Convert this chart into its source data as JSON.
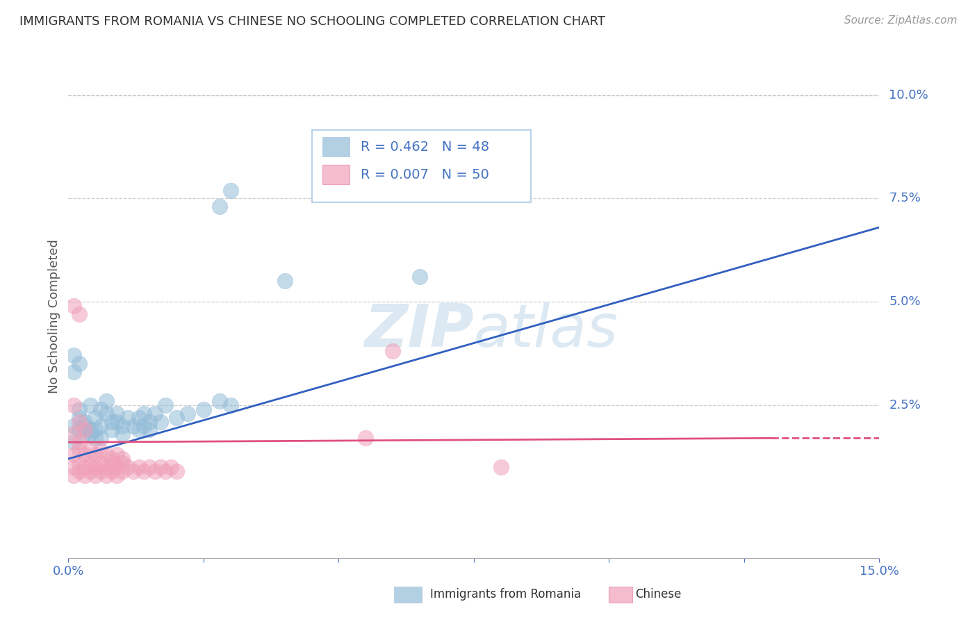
{
  "title": "IMMIGRANTS FROM ROMANIA VS CHINESE NO SCHOOLING COMPLETED CORRELATION CHART",
  "source": "Source: ZipAtlas.com",
  "ylabel": "No Schooling Completed",
  "xlim": [
    0,
    0.15
  ],
  "ylim": [
    -0.012,
    0.105
  ],
  "legend1_r": "0.462",
  "legend1_n": "48",
  "legend2_r": "0.007",
  "legend2_n": "50",
  "background_color": "#ffffff",
  "grid_color": "#c8c8c8",
  "blue_color": "#93bcd8",
  "pink_color": "#f0a0b8",
  "blue_line_color": "#3060c0",
  "pink_line_color": "#e05080",
  "watermark_color": "#dce8f2",
  "romania_points": [
    [
      0.001,
      0.02
    ],
    [
      0.002,
      0.019
    ],
    [
      0.003,
      0.021
    ],
    [
      0.004,
      0.018
    ],
    [
      0.005,
      0.022
    ],
    [
      0.006,
      0.02
    ],
    [
      0.007,
      0.023
    ],
    [
      0.008,
      0.019
    ],
    [
      0.009,
      0.021
    ],
    [
      0.01,
      0.018
    ],
    [
      0.011,
      0.022
    ],
    [
      0.012,
      0.02
    ],
    [
      0.013,
      0.019
    ],
    [
      0.014,
      0.023
    ],
    [
      0.015,
      0.021
    ],
    [
      0.002,
      0.024
    ],
    [
      0.003,
      0.018
    ],
    [
      0.004,
      0.025
    ],
    [
      0.005,
      0.019
    ],
    [
      0.006,
      0.017
    ],
    [
      0.007,
      0.026
    ],
    [
      0.008,
      0.021
    ],
    [
      0.009,
      0.023
    ],
    [
      0.01,
      0.02
    ],
    [
      0.001,
      0.016
    ],
    [
      0.002,
      0.022
    ],
    [
      0.003,
      0.02
    ],
    [
      0.004,
      0.019
    ],
    [
      0.005,
      0.017
    ],
    [
      0.006,
      0.024
    ],
    [
      0.013,
      0.022
    ],
    [
      0.014,
      0.02
    ],
    [
      0.015,
      0.019
    ],
    [
      0.016,
      0.023
    ],
    [
      0.017,
      0.021
    ],
    [
      0.018,
      0.025
    ],
    [
      0.02,
      0.022
    ],
    [
      0.022,
      0.023
    ],
    [
      0.025,
      0.024
    ],
    [
      0.028,
      0.026
    ],
    [
      0.03,
      0.025
    ],
    [
      0.001,
      0.037
    ],
    [
      0.001,
      0.033
    ],
    [
      0.002,
      0.035
    ],
    [
      0.04,
      0.055
    ],
    [
      0.065,
      0.056
    ],
    [
      0.028,
      0.073
    ],
    [
      0.03,
      0.077
    ]
  ],
  "chinese_points": [
    [
      0.001,
      0.01
    ],
    [
      0.001,
      0.008
    ],
    [
      0.002,
      0.009
    ],
    [
      0.002,
      0.011
    ],
    [
      0.003,
      0.01
    ],
    [
      0.003,
      0.008
    ],
    [
      0.004,
      0.009
    ],
    [
      0.004,
      0.011
    ],
    [
      0.005,
      0.01
    ],
    [
      0.005,
      0.008
    ],
    [
      0.006,
      0.009
    ],
    [
      0.006,
      0.011
    ],
    [
      0.007,
      0.01
    ],
    [
      0.007,
      0.008
    ],
    [
      0.008,
      0.009
    ],
    [
      0.008,
      0.011
    ],
    [
      0.009,
      0.01
    ],
    [
      0.009,
      0.008
    ],
    [
      0.01,
      0.009
    ],
    [
      0.01,
      0.011
    ],
    [
      0.011,
      0.01
    ],
    [
      0.012,
      0.009
    ],
    [
      0.013,
      0.01
    ],
    [
      0.014,
      0.009
    ],
    [
      0.015,
      0.01
    ],
    [
      0.016,
      0.009
    ],
    [
      0.017,
      0.01
    ],
    [
      0.018,
      0.009
    ],
    [
      0.019,
      0.01
    ],
    [
      0.02,
      0.009
    ],
    [
      0.001,
      0.013
    ],
    [
      0.002,
      0.014
    ],
    [
      0.003,
      0.013
    ],
    [
      0.004,
      0.014
    ],
    [
      0.005,
      0.013
    ],
    [
      0.006,
      0.014
    ],
    [
      0.007,
      0.013
    ],
    [
      0.008,
      0.012
    ],
    [
      0.009,
      0.013
    ],
    [
      0.01,
      0.012
    ],
    [
      0.001,
      0.025
    ],
    [
      0.002,
      0.021
    ],
    [
      0.003,
      0.019
    ],
    [
      0.001,
      0.018
    ],
    [
      0.002,
      0.016
    ],
    [
      0.001,
      0.049
    ],
    [
      0.002,
      0.047
    ],
    [
      0.06,
      0.038
    ],
    [
      0.055,
      0.017
    ],
    [
      0.08,
      0.01
    ]
  ],
  "romania_trendline_x": [
    0.0,
    0.15
  ],
  "romania_trendline_y": [
    0.012,
    0.068
  ],
  "chinese_trendline_x": [
    0.0,
    0.13
  ],
  "chinese_trendline_y": [
    0.016,
    0.017
  ]
}
